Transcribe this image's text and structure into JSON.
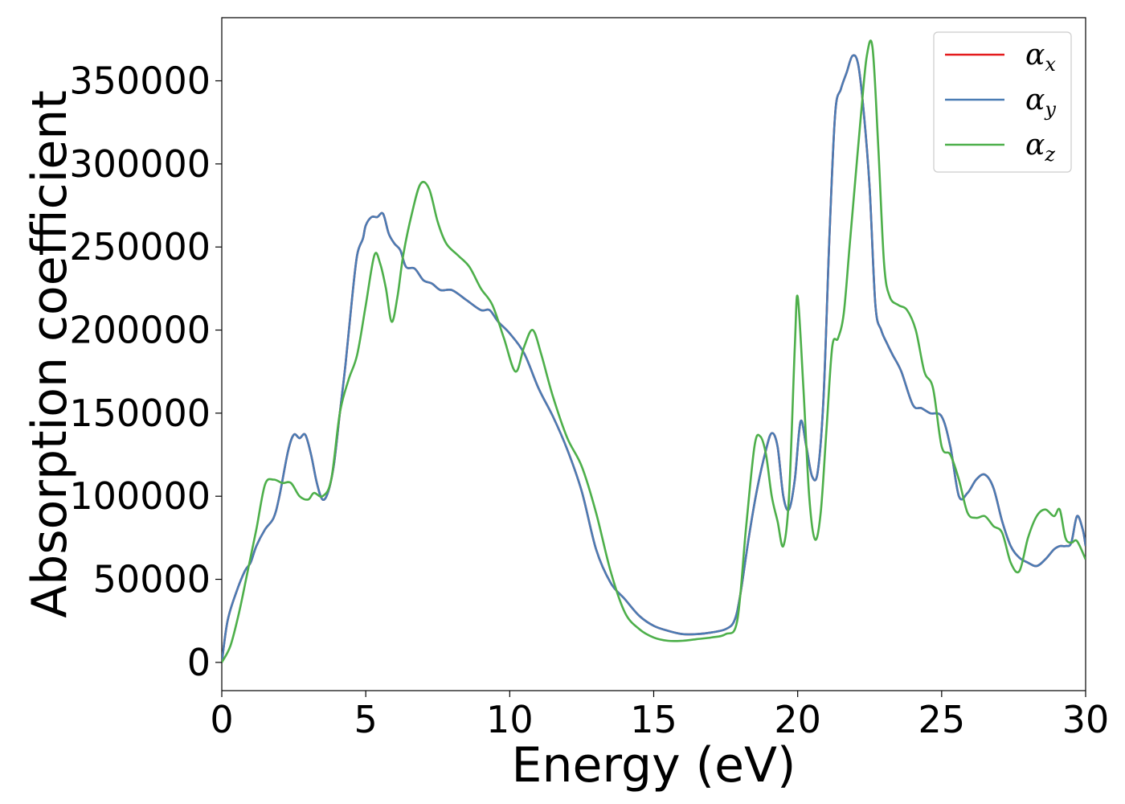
{
  "chart_data": {
    "type": "line",
    "xlabel": "Energy (eV)",
    "ylabel": "Absorption coefficient",
    "xlim": [
      0,
      30
    ],
    "ylim": [
      -17000,
      388000
    ],
    "x_ticks": [
      "0",
      "5",
      "10",
      "15",
      "20",
      "25",
      "30"
    ],
    "y_ticks": [
      "0",
      "50000",
      "100000",
      "150000",
      "200000",
      "250000",
      "300000",
      "350000"
    ],
    "grid": false,
    "legend_position": "top-right",
    "series": [
      {
        "name": "α",
        "sub": "x",
        "color": "#e41a1c",
        "x": [
          0,
          0.2,
          0.5,
          0.8,
          1.0,
          1.2,
          1.5,
          1.8,
          2.0,
          2.3,
          2.5,
          2.7,
          2.9,
          3.1,
          3.3,
          3.5,
          3.7,
          3.9,
          4.1,
          4.3,
          4.5,
          4.7,
          4.9,
          5.0,
          5.2,
          5.4,
          5.6,
          5.8,
          6.0,
          6.2,
          6.4,
          6.7,
          7.0,
          7.3,
          7.6,
          8.0,
          8.5,
          9.0,
          9.3,
          9.6,
          10.0,
          10.5,
          11.0,
          11.5,
          12.0,
          12.5,
          13.0,
          13.5,
          14.0,
          14.5,
          15.0,
          15.5,
          16.0,
          16.5,
          17.0,
          17.5,
          17.8,
          18.0,
          18.3,
          18.6,
          18.9,
          19.1,
          19.3,
          19.5,
          19.7,
          19.9,
          20.1,
          20.3,
          20.5,
          20.7,
          20.9,
          21.1,
          21.3,
          21.5,
          21.7,
          21.9,
          22.1,
          22.3,
          22.5,
          22.7,
          22.9,
          23.1,
          23.3,
          23.6,
          24.0,
          24.3,
          24.6,
          25.0,
          25.3,
          25.6,
          25.9,
          26.2,
          26.5,
          26.8,
          27.1,
          27.4,
          27.7,
          28.0,
          28.3,
          28.6,
          28.9,
          29.1,
          29.3,
          29.5,
          29.7,
          29.9,
          30.0
        ],
        "y": [
          0,
          25000,
          42000,
          55000,
          60000,
          70000,
          80000,
          87000,
          100000,
          127000,
          137000,
          135000,
          137000,
          125000,
          108000,
          98000,
          103000,
          120000,
          150000,
          180000,
          215000,
          245000,
          255000,
          263000,
          268000,
          268000,
          270000,
          258000,
          252000,
          248000,
          238000,
          237000,
          230000,
          228000,
          224000,
          224000,
          218000,
          212000,
          212000,
          205000,
          198000,
          186000,
          165000,
          148000,
          128000,
          103000,
          68000,
          48000,
          38000,
          28000,
          22000,
          19000,
          17000,
          17000,
          18000,
          20000,
          25000,
          40000,
          75000,
          105000,
          128000,
          138000,
          130000,
          100000,
          92000,
          110000,
          145000,
          130000,
          112000,
          115000,
          160000,
          255000,
          330000,
          345000,
          355000,
          365000,
          360000,
          330000,
          285000,
          215000,
          200000,
          192000,
          185000,
          175000,
          155000,
          153000,
          150000,
          148000,
          130000,
          100000,
          102000,
          110000,
          113000,
          105000,
          85000,
          70000,
          63000,
          60000,
          58000,
          62000,
          68000,
          70000,
          70000,
          72000,
          88000,
          80000,
          70000
        ]
      },
      {
        "name": "α",
        "sub": "y",
        "color": "#4a7cb4",
        "x": [
          0,
          0.2,
          0.5,
          0.8,
          1.0,
          1.2,
          1.5,
          1.8,
          2.0,
          2.3,
          2.5,
          2.7,
          2.9,
          3.1,
          3.3,
          3.5,
          3.7,
          3.9,
          4.1,
          4.3,
          4.5,
          4.7,
          4.9,
          5.0,
          5.2,
          5.4,
          5.6,
          5.8,
          6.0,
          6.2,
          6.4,
          6.7,
          7.0,
          7.3,
          7.6,
          8.0,
          8.5,
          9.0,
          9.3,
          9.6,
          10.0,
          10.5,
          11.0,
          11.5,
          12.0,
          12.5,
          13.0,
          13.5,
          14.0,
          14.5,
          15.0,
          15.5,
          16.0,
          16.5,
          17.0,
          17.5,
          17.8,
          18.0,
          18.3,
          18.6,
          18.9,
          19.1,
          19.3,
          19.5,
          19.7,
          19.9,
          20.1,
          20.3,
          20.5,
          20.7,
          20.9,
          21.1,
          21.3,
          21.5,
          21.7,
          21.9,
          22.1,
          22.3,
          22.5,
          22.7,
          22.9,
          23.1,
          23.3,
          23.6,
          24.0,
          24.3,
          24.6,
          25.0,
          25.3,
          25.6,
          25.9,
          26.2,
          26.5,
          26.8,
          27.1,
          27.4,
          27.7,
          28.0,
          28.3,
          28.6,
          28.9,
          29.1,
          29.3,
          29.5,
          29.7,
          29.9,
          30.0
        ],
        "y": [
          0,
          25000,
          42000,
          55000,
          60000,
          70000,
          80000,
          87000,
          100000,
          127000,
          137000,
          135000,
          137000,
          125000,
          108000,
          98000,
          103000,
          120000,
          150000,
          180000,
          215000,
          245000,
          255000,
          263000,
          268000,
          268000,
          270000,
          258000,
          252000,
          248000,
          238000,
          237000,
          230000,
          228000,
          224000,
          224000,
          218000,
          212000,
          212000,
          205000,
          198000,
          186000,
          165000,
          148000,
          128000,
          103000,
          68000,
          48000,
          38000,
          28000,
          22000,
          19000,
          17000,
          17000,
          18000,
          20000,
          25000,
          40000,
          75000,
          105000,
          128000,
          138000,
          130000,
          100000,
          92000,
          110000,
          145000,
          130000,
          112000,
          115000,
          160000,
          255000,
          330000,
          345000,
          355000,
          365000,
          360000,
          330000,
          285000,
          215000,
          200000,
          192000,
          185000,
          175000,
          155000,
          153000,
          150000,
          148000,
          130000,
          100000,
          102000,
          110000,
          113000,
          105000,
          85000,
          70000,
          63000,
          60000,
          58000,
          62000,
          68000,
          70000,
          70000,
          72000,
          88000,
          80000,
          70000
        ]
      },
      {
        "name": "α",
        "sub": "z",
        "color": "#4daf4a",
        "x": [
          0,
          0.3,
          0.6,
          0.9,
          1.2,
          1.5,
          1.8,
          2.1,
          2.4,
          2.7,
          3.0,
          3.2,
          3.5,
          3.8,
          4.1,
          4.4,
          4.7,
          5.0,
          5.3,
          5.5,
          5.7,
          5.9,
          6.1,
          6.3,
          6.6,
          6.9,
          7.2,
          7.5,
          7.8,
          8.2,
          8.6,
          9.0,
          9.4,
          9.8,
          10.2,
          10.5,
          10.8,
          11.1,
          11.5,
          12.0,
          12.5,
          13.0,
          13.5,
          14.0,
          14.5,
          15.0,
          15.5,
          16.0,
          16.5,
          17.0,
          17.5,
          17.9,
          18.2,
          18.5,
          18.7,
          18.9,
          19.1,
          19.3,
          19.5,
          19.7,
          19.9,
          20.0,
          20.2,
          20.4,
          20.6,
          20.8,
          21.0,
          21.2,
          21.4,
          21.6,
          21.8,
          22.0,
          22.2,
          22.4,
          22.6,
          22.8,
          23.0,
          23.2,
          23.5,
          23.8,
          24.1,
          24.4,
          24.7,
          25.0,
          25.3,
          25.6,
          25.9,
          26.2,
          26.5,
          26.8,
          27.1,
          27.4,
          27.7,
          28.0,
          28.3,
          28.6,
          28.9,
          29.1,
          29.3,
          29.5,
          29.7,
          30.0
        ],
        "y": [
          0,
          10000,
          30000,
          55000,
          80000,
          107000,
          110000,
          108000,
          108000,
          100000,
          98000,
          102000,
          100000,
          110000,
          150000,
          170000,
          185000,
          215000,
          245000,
          240000,
          225000,
          205000,
          220000,
          245000,
          270000,
          288000,
          285000,
          265000,
          252000,
          245000,
          238000,
          225000,
          215000,
          195000,
          175000,
          190000,
          200000,
          185000,
          160000,
          135000,
          118000,
          90000,
          55000,
          30000,
          20000,
          15000,
          13000,
          13000,
          14000,
          15000,
          17000,
          25000,
          80000,
          130000,
          136000,
          125000,
          100000,
          85000,
          70000,
          100000,
          190000,
          220000,
          165000,
          100000,
          74000,
          90000,
          140000,
          190000,
          195000,
          210000,
          250000,
          290000,
          330000,
          365000,
          370000,
          310000,
          240000,
          220000,
          215000,
          212000,
          200000,
          175000,
          165000,
          130000,
          125000,
          110000,
          90000,
          87000,
          88000,
          82000,
          78000,
          60000,
          55000,
          75000,
          88000,
          92000,
          88000,
          92000,
          75000,
          72000,
          73000,
          62000
        ]
      }
    ]
  }
}
